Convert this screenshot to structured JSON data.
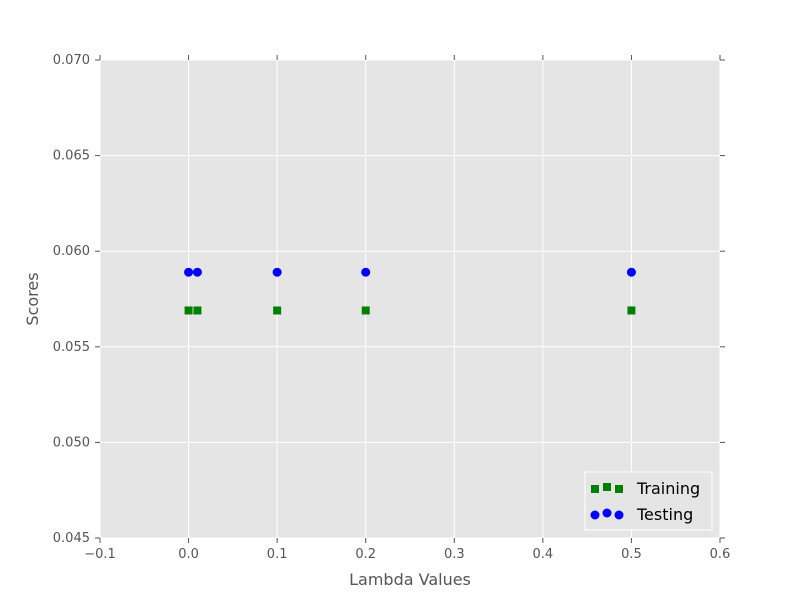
{
  "chart_data": {
    "type": "scatter",
    "title": "",
    "xlabel": "Lambda Values",
    "ylabel": "Scores",
    "xlim": [
      -0.1,
      0.6
    ],
    "ylim": [
      0.045,
      0.07
    ],
    "xticks": [
      -0.1,
      0.0,
      0.1,
      0.2,
      0.3,
      0.4,
      0.5,
      0.6
    ],
    "yticks": [
      0.045,
      0.05,
      0.055,
      0.06,
      0.065,
      0.07
    ],
    "xtick_labels": [
      "−0.1",
      "0.0",
      "0.1",
      "0.2",
      "0.3",
      "0.4",
      "0.5",
      "0.6"
    ],
    "ytick_labels": [
      "0.045",
      "0.050",
      "0.055",
      "0.060",
      "0.065",
      "0.070"
    ],
    "grid": true,
    "legend_position": "lower-right",
    "background": "#e5e5e5",
    "series": [
      {
        "name": "Training",
        "marker": "square",
        "color": "#008000",
        "x": [
          0.0,
          0.01,
          0.1,
          0.2,
          0.5
        ],
        "y": [
          0.0569,
          0.0569,
          0.0569,
          0.0569,
          0.0569
        ]
      },
      {
        "name": "Testing",
        "marker": "circle",
        "color": "#0000ff",
        "x": [
          0.0,
          0.01,
          0.1,
          0.2,
          0.5
        ],
        "y": [
          0.0589,
          0.0589,
          0.0589,
          0.0589,
          0.0589
        ]
      }
    ]
  }
}
